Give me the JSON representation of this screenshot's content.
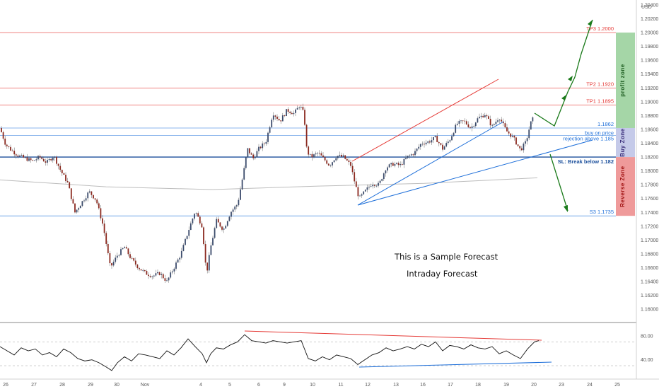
{
  "chart_data": [
    {
      "type": "candlestick",
      "currency": "USD",
      "price_ticks": [
        "1.20400",
        "1.20200",
        "1.20000",
        "1.19800",
        "1.19600",
        "1.19400",
        "1.19200",
        "1.19000",
        "1.18800",
        "1.18600",
        "1.18400",
        "1.18200",
        "1.18000",
        "1.17800",
        "1.17600",
        "1.17400",
        "1.17200",
        "1.17000",
        "1.16800",
        "1.16600",
        "1.16400",
        "1.16200",
        "1.16000"
      ],
      "ylim": [
        1.1593,
        1.2042
      ],
      "x_ticks": [
        "26",
        "27",
        "28",
        "29",
        "30",
        "Nov",
        "4",
        "5",
        "6",
        "9",
        "10",
        "11",
        "12",
        "13",
        "16",
        "17",
        "18",
        "19",
        "20",
        "23",
        "24",
        "25"
      ],
      "close_path": [
        [
          0,
          1.1862
        ],
        [
          8,
          1.1838
        ],
        [
          16,
          1.183
        ],
        [
          26,
          1.1822
        ],
        [
          36,
          1.1818
        ],
        [
          46,
          1.1814
        ],
        [
          56,
          1.182
        ],
        [
          66,
          1.1812
        ],
        [
          76,
          1.1822
        ],
        [
          86,
          1.18
        ],
        [
          96,
          1.1782
        ],
        [
          106,
          1.174
        ],
        [
          116,
          1.1755
        ],
        [
          126,
          1.177
        ],
        [
          136,
          1.1758
        ],
        [
          146,
          1.172
        ],
        [
          156,
          1.166
        ],
        [
          166,
          1.1678
        ],
        [
          176,
          1.169
        ],
        [
          186,
          1.1672
        ],
        [
          196,
          1.166
        ],
        [
          206,
          1.1652
        ],
        [
          216,
          1.1648
        ],
        [
          226,
          1.1652
        ],
        [
          236,
          1.164
        ],
        [
          246,
          1.166
        ],
        [
          256,
          1.168
        ],
        [
          266,
          1.1712
        ],
        [
          276,
          1.1742
        ],
        [
          286,
          1.172
        ],
        [
          292,
          1.165
        ],
        [
          298,
          1.169
        ],
        [
          306,
          1.1728
        ],
        [
          316,
          1.1715
        ],
        [
          326,
          1.174
        ],
        [
          336,
          1.1752
        ],
        [
          344,
          1.1795
        ],
        [
          350,
          1.1832
        ],
        [
          358,
          1.1818
        ],
        [
          366,
          1.1832
        ],
        [
          376,
          1.1842
        ],
        [
          386,
          1.1884
        ],
        [
          396,
          1.1872
        ],
        [
          406,
          1.1888
        ],
        [
          416,
          1.1883
        ],
        [
          424,
          1.1895
        ],
        [
          430,
          1.1882
        ],
        [
          434,
          1.1828
        ],
        [
          440,
          1.182
        ],
        [
          450,
          1.1826
        ],
        [
          460,
          1.1815
        ],
        [
          466,
          1.1808
        ],
        [
          476,
          1.1822
        ],
        [
          486,
          1.182
        ],
        [
          496,
          1.1808
        ],
        [
          502,
          1.1782
        ],
        [
          508,
          1.176
        ],
        [
          516,
          1.177
        ],
        [
          526,
          1.1782
        ],
        [
          536,
          1.178
        ],
        [
          546,
          1.1805
        ],
        [
          556,
          1.181
        ],
        [
          566,
          1.1808
        ],
        [
          576,
          1.182
        ],
        [
          586,
          1.1826
        ],
        [
          596,
          1.184
        ],
        [
          606,
          1.1842
        ],
        [
          616,
          1.1848
        ],
        [
          626,
          1.1832
        ],
        [
          636,
          1.1845
        ],
        [
          646,
          1.1868
        ],
        [
          656,
          1.1872
        ],
        [
          666,
          1.1862
        ],
        [
          676,
          1.1876
        ],
        [
          686,
          1.1882
        ],
        [
          696,
          1.1864
        ],
        [
          706,
          1.1878
        ],
        [
          716,
          1.1858
        ],
        [
          726,
          1.1848
        ],
        [
          736,
          1.183
        ],
        [
          744,
          1.1842
        ],
        [
          750,
          1.1868
        ],
        [
          756,
          1.188
        ]
      ],
      "ma_path": [
        [
          0,
          1.1787
        ],
        [
          150,
          1.1777
        ],
        [
          300,
          1.1773
        ],
        [
          450,
          1.1778
        ],
        [
          600,
          1.1782
        ],
        [
          700,
          1.1787
        ],
        [
          760,
          1.179
        ]
      ],
      "levels": [
        {
          "label": "TP3 1.2000",
          "price": 1.2,
          "color": "#e53935"
        },
        {
          "label": "TP2 1.1920",
          "price": 1.192,
          "color": "#e53935"
        },
        {
          "label": "TP1 1.1895",
          "price": 1.1895,
          "color": "#e53935"
        },
        {
          "label": "1.1862",
          "price": 1.1862,
          "color": "#1e6fd9"
        },
        {
          "label": "buy on price",
          "price": 1.1851,
          "color": "#1e6fd9"
        },
        {
          "label": "rejection above 1.185",
          "price": 1.1847,
          "color": "#1e6fd9"
        },
        {
          "label": "SL: Break below 1.182",
          "price": 1.182,
          "color": "#1b4f9c"
        },
        {
          "label": "S3 1.1735",
          "price": 1.1735,
          "color": "#1e6fd9"
        }
      ],
      "zones": [
        {
          "label": "profit zone",
          "from": 1.1862,
          "to": 1.2,
          "color": "#a5d6a7"
        },
        {
          "label": "Buy Zone",
          "from": 1.182,
          "to": 1.1862,
          "color": "#c5cae9"
        },
        {
          "label": "Reverse Zone",
          "from": 1.1735,
          "to": 1.182,
          "color": "#ef9a9a"
        }
      ],
      "notes": [
        "This is a Sample Forecast",
        "Intraday Forecast"
      ]
    },
    {
      "type": "line",
      "indicator_ticks": [
        "80.00",
        "40.00"
      ],
      "ylim": [
        10,
        100
      ],
      "guide_levels": [
        70,
        30
      ],
      "values": [
        [
          0,
          62
        ],
        [
          10,
          55
        ],
        [
          20,
          48
        ],
        [
          30,
          60
        ],
        [
          40,
          55
        ],
        [
          50,
          58
        ],
        [
          60,
          48
        ],
        [
          70,
          52
        ],
        [
          80,
          45
        ],
        [
          90,
          58
        ],
        [
          100,
          52
        ],
        [
          110,
          42
        ],
        [
          120,
          38
        ],
        [
          130,
          40
        ],
        [
          140,
          35
        ],
        [
          150,
          28
        ],
        [
          158,
          22
        ],
        [
          166,
          35
        ],
        [
          176,
          45
        ],
        [
          186,
          38
        ],
        [
          196,
          50
        ],
        [
          206,
          48
        ],
        [
          216,
          45
        ],
        [
          226,
          42
        ],
        [
          236,
          55
        ],
        [
          246,
          48
        ],
        [
          256,
          60
        ],
        [
          266,
          75
        ],
        [
          276,
          62
        ],
        [
          286,
          50
        ],
        [
          292,
          35
        ],
        [
          298,
          50
        ],
        [
          306,
          60
        ],
        [
          316,
          58
        ],
        [
          326,
          65
        ],
        [
          336,
          70
        ],
        [
          346,
          82
        ],
        [
          356,
          72
        ],
        [
          366,
          70
        ],
        [
          376,
          68
        ],
        [
          386,
          72
        ],
        [
          396,
          70
        ],
        [
          406,
          68
        ],
        [
          416,
          70
        ],
        [
          426,
          72
        ],
        [
          436,
          42
        ],
        [
          446,
          38
        ],
        [
          456,
          45
        ],
        [
          466,
          40
        ],
        [
          476,
          48
        ],
        [
          486,
          45
        ],
        [
          496,
          42
        ],
        [
          506,
          32
        ],
        [
          516,
          40
        ],
        [
          526,
          48
        ],
        [
          536,
          52
        ],
        [
          546,
          60
        ],
        [
          556,
          55
        ],
        [
          566,
          58
        ],
        [
          576,
          62
        ],
        [
          586,
          58
        ],
        [
          596,
          66
        ],
        [
          606,
          62
        ],
        [
          616,
          70
        ],
        [
          626,
          55
        ],
        [
          636,
          64
        ],
        [
          646,
          62
        ],
        [
          656,
          58
        ],
        [
          666,
          65
        ],
        [
          676,
          60
        ],
        [
          686,
          58
        ],
        [
          696,
          62
        ],
        [
          706,
          50
        ],
        [
          716,
          55
        ],
        [
          726,
          48
        ],
        [
          736,
          42
        ],
        [
          746,
          58
        ],
        [
          756,
          70
        ],
        [
          762,
          72
        ]
      ]
    }
  ]
}
